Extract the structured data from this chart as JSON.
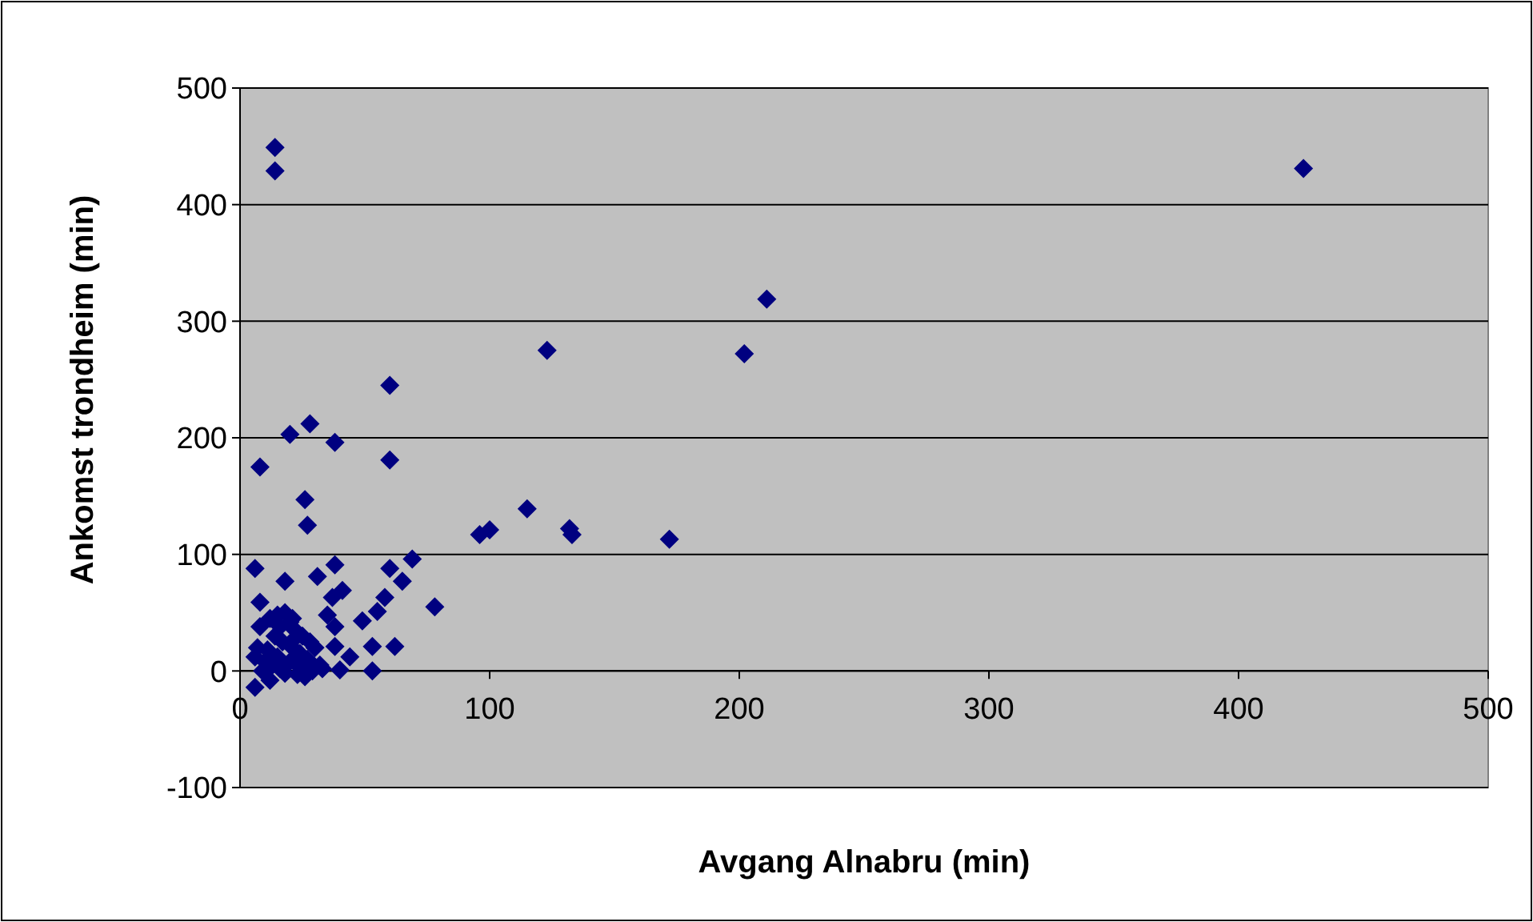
{
  "chart_data": {
    "type": "scatter",
    "xlabel": "Avgang Alnabru (min)",
    "ylabel": "Ankomst trondheim (min)",
    "xlim": [
      0,
      500
    ],
    "ylim": [
      -100,
      500
    ],
    "xticks": [
      0,
      100,
      200,
      300,
      400,
      500
    ],
    "yticks": [
      -100,
      0,
      100,
      200,
      300,
      400,
      500
    ],
    "grid": "y",
    "marker": "diamond",
    "series": [
      {
        "color": "#000080",
        "x": [
          14,
          14,
          426,
          211,
          202,
          123,
          8,
          20,
          28,
          38,
          60,
          60,
          26,
          27,
          115,
          96,
          100,
          132,
          133,
          172,
          6,
          8,
          18,
          31,
          38,
          60,
          69,
          78,
          65,
          58,
          55,
          49,
          37,
          41,
          35,
          38,
          53,
          62,
          38,
          44,
          53,
          40,
          29,
          8,
          6,
          6,
          9,
          12,
          15,
          18,
          20,
          22,
          25,
          28,
          30,
          14,
          17,
          21,
          24,
          27,
          10,
          13,
          16,
          23,
          26,
          32,
          11,
          15,
          20,
          24,
          7,
          12,
          18,
          22,
          33,
          16,
          21
        ],
        "values": [
          449,
          429,
          431,
          319,
          272,
          275,
          175,
          203,
          212,
          196,
          245,
          181,
          147,
          125,
          139,
          117,
          121,
          122,
          117,
          113,
          88,
          59,
          77,
          81,
          91,
          88,
          96,
          55,
          77,
          63,
          51,
          43,
          63,
          69,
          48,
          38,
          21,
          21,
          21,
          12,
          0,
          1,
          0,
          38,
          -14,
          12,
          0,
          45,
          48,
          50,
          42,
          35,
          30,
          25,
          20,
          30,
          25,
          20,
          15,
          10,
          8,
          5,
          2,
          -3,
          -5,
          5,
          18,
          12,
          8,
          3,
          20,
          -8,
          -2,
          28,
          2,
          38,
          45
        ]
      }
    ]
  }
}
